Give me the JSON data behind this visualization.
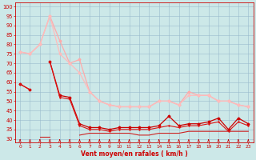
{
  "x": [
    0,
    1,
    2,
    3,
    4,
    5,
    6,
    7,
    8,
    9,
    10,
    11,
    12,
    13,
    14,
    15,
    16,
    17,
    18,
    19,
    20,
    21,
    22,
    23
  ],
  "series": [
    {
      "name": "line_light1",
      "color": "#ffaaaa",
      "lw": 0.9,
      "marker": "D",
      "markersize": 1.5,
      "y": [
        76,
        75,
        80,
        95,
        82,
        70,
        72,
        55,
        50,
        48,
        47,
        47,
        47,
        47,
        50,
        50,
        48,
        55,
        53,
        53,
        50,
        50,
        48,
        47
      ]
    },
    {
      "name": "line_light2",
      "color": "#ffbbbb",
      "lw": 0.9,
      "marker": "D",
      "markersize": 1.5,
      "y": [
        76,
        75,
        80,
        95,
        75,
        70,
        65,
        55,
        50,
        48,
        47,
        47,
        47,
        47,
        50,
        50,
        48,
        53,
        53,
        53,
        50,
        50,
        48,
        47
      ]
    },
    {
      "name": "line_dark1",
      "color": "#cc0000",
      "lw": 0.9,
      "marker": "D",
      "markersize": 1.5,
      "y": [
        59,
        56,
        null,
        71,
        53,
        52,
        38,
        36,
        36,
        35,
        36,
        36,
        36,
        36,
        37,
        42,
        37,
        38,
        38,
        39,
        41,
        35,
        41,
        38
      ]
    },
    {
      "name": "line_dark2",
      "color": "#dd1111",
      "lw": 0.8,
      "marker": "+",
      "markersize": 2.0,
      "y": [
        59,
        56,
        null,
        71,
        52,
        51,
        37,
        35,
        35,
        34,
        35,
        35,
        35,
        35,
        36,
        37,
        36,
        37,
        37,
        38,
        39,
        34,
        39,
        37
      ]
    },
    {
      "name": "line_flat",
      "color": "#cc2222",
      "lw": 0.8,
      "marker": null,
      "markersize": 0,
      "y": [
        null,
        null,
        31,
        31,
        null,
        null,
        32,
        33,
        33,
        33,
        33,
        33,
        32,
        32,
        33,
        33,
        33,
        34,
        34,
        34,
        34,
        34,
        34,
        34
      ]
    }
  ],
  "ylim": [
    28,
    102
  ],
  "xlim": [
    -0.5,
    23.5
  ],
  "yticks": [
    30,
    35,
    40,
    45,
    50,
    55,
    60,
    65,
    70,
    75,
    80,
    85,
    90,
    95,
    100
  ],
  "xticks": [
    0,
    1,
    2,
    3,
    4,
    5,
    6,
    7,
    8,
    9,
    10,
    11,
    12,
    13,
    14,
    15,
    16,
    17,
    18,
    19,
    20,
    21,
    22,
    23
  ],
  "xlabel": "Vent moyen/en rafales ( km/h )",
  "bg_color": "#cce8e8",
  "grid_color": "#99bbcc",
  "tick_color": "#cc0000",
  "label_color": "#cc0000",
  "spine_color": "#cc0000",
  "ytick_fontsize": 4.8,
  "xtick_fontsize": 4.2,
  "xlabel_fontsize": 5.5
}
